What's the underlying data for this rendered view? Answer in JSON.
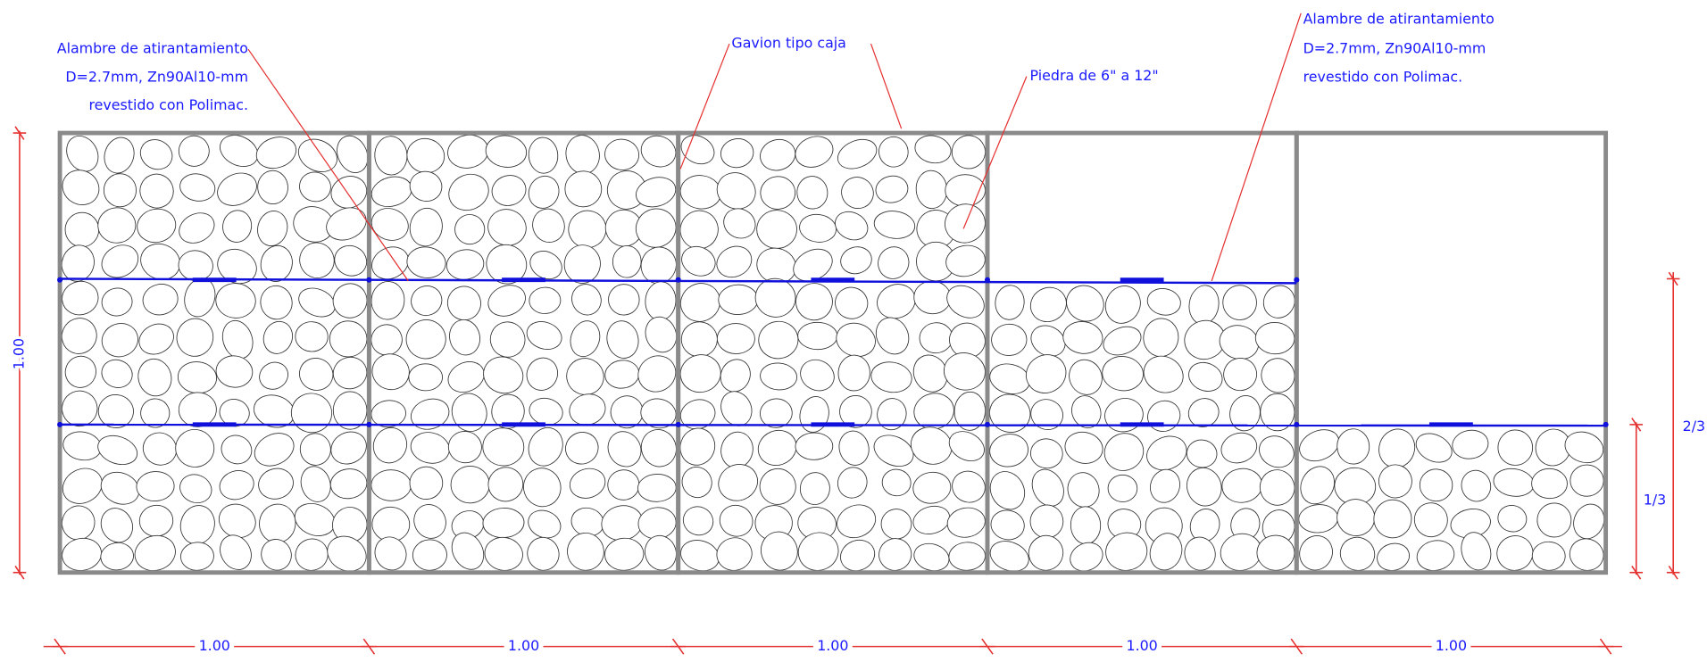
{
  "annotations": [
    {
      "lines": [
        "Alambre de atirantamiento",
        "D=2.7mm, Zn90Al10-mm",
        "revestido con Polimac."
      ]
    },
    {
      "lines": [
        "Gavion tipo caja"
      ]
    },
    {
      "lines": [
        "Piedra de 6\" a 12\""
      ]
    },
    {
      "lines": [
        "Alambre de atirantamiento",
        "D=2.7mm, Zn90Al10-mm",
        "revestido con Polimac."
      ]
    }
  ],
  "dimensions": {
    "bottom": [
      "1.00",
      "1.00",
      "1.00",
      "1.00",
      "1.00"
    ],
    "left": "1.00",
    "right": [
      "1/3",
      "2/3"
    ]
  }
}
